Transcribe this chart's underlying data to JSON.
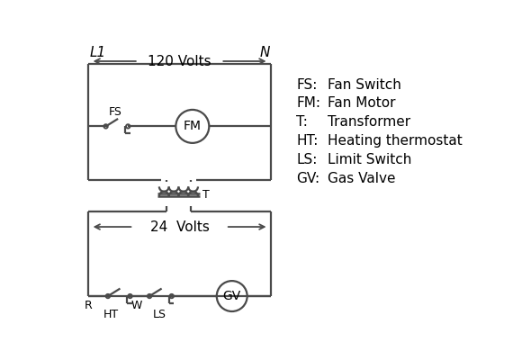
{
  "bg_color": "#ffffff",
  "line_color": "#4a4a4a",
  "text_color": "#000000",
  "legend": {
    "FS": "Fan Switch",
    "FM": "Fan Motor",
    "T": "Transformer",
    "HT": "Heating thermostat",
    "LS": "Limit Switch",
    "GV": "Gas Valve"
  },
  "L1_label": "L1",
  "N_label": "N",
  "volts120": "120 Volts",
  "volts24": "24  Volts",
  "T_label": "T",
  "R_label": "R",
  "W_label": "W",
  "HT_label": "HT",
  "LS_label": "LS",
  "FS_label": "FS",
  "FM_label": "FM",
  "GV_label": "GV"
}
